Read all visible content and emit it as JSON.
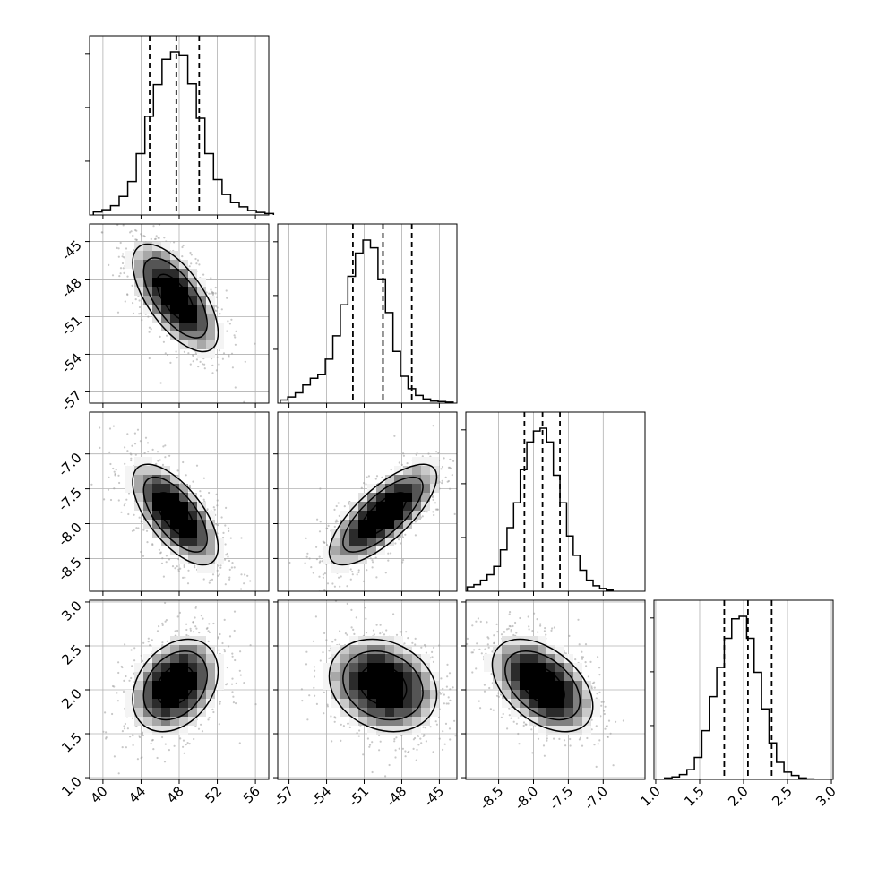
{
  "chart_data": {
    "type": "corner",
    "title": "",
    "parameters": [
      {
        "index": 0,
        "axis_label": "",
        "range": [
          38.6,
          57.4
        ],
        "ticks": [
          40,
          44,
          48,
          52,
          56
        ],
        "tick_labels": [
          "40",
          "44",
          "48",
          "52",
          "56"
        ],
        "quantiles": [
          44.9,
          47.7,
          50.1
        ],
        "hist": {
          "bin_start": 39.0,
          "bin_width": 0.9,
          "counts": [
            8,
            14,
            25,
            50,
            90,
            165,
            265,
            350,
            418,
            438,
            430,
            352,
            260,
            165,
            95,
            55,
            33,
            22,
            12,
            7,
            4
          ]
        }
      },
      {
        "index": 1,
        "axis_label": "",
        "range": [
          -57.9,
          -43.6
        ],
        "ticks": [
          -57,
          -54,
          -51,
          -48,
          -45
        ],
        "tick_labels": [
          "-57",
          "-54",
          "-51",
          "-48",
          "-45"
        ],
        "quantiles": [
          -51.9,
          -49.5,
          -47.2
        ],
        "hist": {
          "bin_start": -57.7,
          "bin_width": 0.6,
          "counts": [
            6,
            12,
            20,
            35,
            48,
            55,
            85,
            130,
            190,
            245,
            290,
            315,
            300,
            240,
            175,
            100,
            52,
            28,
            15,
            8,
            4,
            3,
            2
          ]
        }
      },
      {
        "index": 2,
        "axis_label": "",
        "range": [
          -8.97,
          -6.4
        ],
        "ticks": [
          -8.5,
          -8.0,
          -7.5,
          -7.0
        ],
        "tick_labels": [
          "-8.5",
          "-8.0",
          "-7.5",
          "-7.0"
        ],
        "quantiles": [
          -8.13,
          -7.87,
          -7.62
        ],
        "hist": {
          "bin_start": -8.95,
          "bin_width": 0.095,
          "counts": [
            8,
            12,
            20,
            30,
            45,
            75,
            115,
            160,
            220,
            270,
            290,
            295,
            270,
            210,
            160,
            100,
            65,
            38,
            20,
            10,
            5,
            2
          ]
        }
      },
      {
        "index": 3,
        "axis_label": "",
        "range": [
          0.98,
          3.02
        ],
        "ticks": [
          1.0,
          1.5,
          2.0,
          2.5,
          3.0
        ],
        "tick_labels": [
          "1.0",
          "1.5",
          "2.0",
          "2.5",
          "3.0"
        ],
        "quantiles": [
          1.78,
          2.05,
          2.32
        ],
        "hist": {
          "bin_start": 1.1,
          "bin_width": 0.085,
          "counts": [
            3,
            5,
            10,
            20,
            45,
            100,
            170,
            230,
            290,
            330,
            335,
            290,
            220,
            145,
            75,
            35,
            15,
            8,
            3,
            1
          ]
        }
      }
    ],
    "pairs": [
      {
        "x_param": 0,
        "y_param": 1,
        "center": [
          47.6,
          -49.5
        ],
        "sd": [
          2.3,
          2.2
        ],
        "corr": -0.65
      },
      {
        "x_param": 0,
        "y_param": 2,
        "center": [
          47.6,
          -7.87
        ],
        "sd": [
          2.3,
          0.37
        ],
        "corr": -0.65
      },
      {
        "x_param": 1,
        "y_param": 2,
        "center": [
          -49.5,
          -7.87
        ],
        "sd": [
          2.2,
          0.37
        ],
        "corr": 0.75
      },
      {
        "x_param": 0,
        "y_param": 3,
        "center": [
          47.6,
          2.05
        ],
        "sd": [
          2.3,
          0.27
        ],
        "corr": 0.3
      },
      {
        "x_param": 1,
        "y_param": 3,
        "center": [
          -49.5,
          2.05
        ],
        "sd": [
          2.2,
          0.27
        ],
        "corr": -0.2
      },
      {
        "x_param": 2,
        "y_param": 3,
        "center": [
          -7.87,
          2.05
        ],
        "sd": [
          0.37,
          0.27
        ],
        "corr": -0.45
      }
    ],
    "grid": true,
    "legend": "none",
    "colors": {
      "line": "#000000",
      "grid": "#b0b0b0",
      "points": "#9a9a9a",
      "density_dark": "#000000",
      "density_light": "#ffffff"
    }
  }
}
